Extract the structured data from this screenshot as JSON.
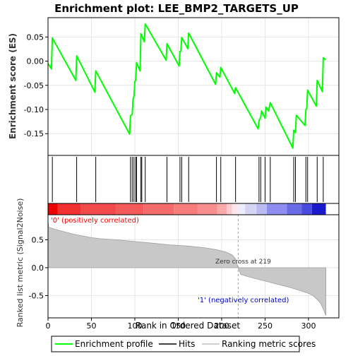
{
  "chart_data": [
    {
      "type": "line",
      "title": "Enrichment plot: LEE_BMP2_TARGETS_UP",
      "ylabel": "Enrichment score (ES)",
      "xlim": [
        0,
        335
      ],
      "ylim": [
        -0.195,
        0.09
      ],
      "yticks": [
        0.05,
        0.0,
        -0.05,
        -0.1,
        -0.15
      ],
      "ytick_labels": [
        "0.05",
        "0.00",
        "-0.05",
        "-0.10",
        "-0.15"
      ],
      "grid": true,
      "series": [
        {
          "name": "Enrichment profile",
          "color": "#00ff00",
          "points": [
            [
              0,
              -0.005
            ],
            [
              4,
              -0.016
            ],
            [
              5,
              0.048
            ],
            [
              32,
              -0.04
            ],
            [
              33,
              0.011
            ],
            [
              54,
              -0.064
            ],
            [
              55,
              -0.02
            ],
            [
              94,
              -0.151
            ],
            [
              95,
              -0.113
            ],
            [
              97,
              -0.11
            ],
            [
              98,
              -0.078
            ],
            [
              99,
              -0.073
            ],
            [
              100,
              -0.042
            ],
            [
              101,
              -0.04
            ],
            [
              102,
              -0.003
            ],
            [
              106,
              -0.02
            ],
            [
              107,
              0.057
            ],
            [
              111,
              0.04
            ],
            [
              112,
              0.077
            ],
            [
              136,
              0.002
            ],
            [
              137,
              0.036
            ],
            [
              151,
              -0.01
            ],
            [
              152,
              0.02
            ],
            [
              153,
              0.021
            ],
            [
              154,
              0.049
            ],
            [
              161,
              0.026
            ],
            [
              162,
              0.058
            ],
            [
              193,
              -0.048
            ],
            [
              194,
              -0.024
            ],
            [
              198,
              -0.033
            ],
            [
              199,
              -0.013
            ],
            [
              215,
              -0.067
            ],
            [
              216,
              -0.055
            ],
            [
              242,
              -0.14
            ],
            [
              243,
              -0.123
            ],
            [
              245,
              -0.116
            ],
            [
              246,
              -0.103
            ],
            [
              250,
              -0.118
            ],
            [
              251,
              -0.095
            ],
            [
              254,
              -0.103
            ],
            [
              256,
              -0.086
            ],
            [
              282,
              -0.18
            ],
            [
              283,
              -0.143
            ],
            [
              285,
              -0.148
            ],
            [
              286,
              -0.112
            ],
            [
              296,
              -0.133
            ],
            [
              297,
              -0.1
            ],
            [
              298,
              -0.098
            ],
            [
              299,
              -0.06
            ],
            [
              309,
              -0.093
            ],
            [
              310,
              -0.04
            ],
            [
              316,
              -0.063
            ],
            [
              317,
              0.007
            ],
            [
              320,
              0.003
            ]
          ]
        }
      ]
    },
    {
      "type": "bar",
      "name": "Hits",
      "hit_positions": [
        5,
        33,
        55,
        95,
        97,
        99,
        101,
        102,
        107,
        108,
        112,
        137,
        152,
        154,
        162,
        194,
        199,
        216,
        243,
        245,
        250,
        256,
        283,
        285,
        297,
        299,
        310,
        317
      ]
    },
    {
      "type": "heatmap",
      "xlim": [
        0,
        335
      ],
      "segments": [
        {
          "x0": 0,
          "x1": 11,
          "color": "#ee0000"
        },
        {
          "x0": 11,
          "x1": 38,
          "color": "#f03030"
        },
        {
          "x0": 38,
          "x1": 78,
          "color": "#f24a4a"
        },
        {
          "x0": 78,
          "x1": 110,
          "color": "#f45a5a"
        },
        {
          "x0": 110,
          "x1": 145,
          "color": "#f56a6a"
        },
        {
          "x0": 145,
          "x1": 172,
          "color": "#f77c7c"
        },
        {
          "x0": 172,
          "x1": 195,
          "color": "#f98e8e"
        },
        {
          "x0": 195,
          "x1": 206,
          "color": "#fbaaaa"
        },
        {
          "x0": 206,
          "x1": 212,
          "color": "#fdcccc"
        },
        {
          "x0": 212,
          "x1": 219,
          "color": "#fde6ee"
        },
        {
          "x0": 219,
          "x1": 227,
          "color": "#ececfa"
        },
        {
          "x0": 227,
          "x1": 240,
          "color": "#d4d4f6"
        },
        {
          "x0": 240,
          "x1": 252,
          "color": "#babaf2"
        },
        {
          "x0": 252,
          "x1": 275,
          "color": "#8e8ef0"
        },
        {
          "x0": 275,
          "x1": 292,
          "color": "#6a6ae4"
        },
        {
          "x0": 292,
          "x1": 304,
          "color": "#4a4ae0"
        },
        {
          "x0": 304,
          "x1": 320,
          "color": "#1a1acc"
        }
      ]
    },
    {
      "type": "area",
      "xlabel": "Rank in Ordered Dataset",
      "ylabel": "Ranked list metric (Signal2Noise)",
      "xlim": [
        0,
        335
      ],
      "ylim": [
        -0.9,
        0.95
      ],
      "xticks": [
        0,
        50,
        100,
        150,
        200,
        250,
        300
      ],
      "yticks": [
        0.5,
        0.0,
        -0.5
      ],
      "ytick_labels": [
        "0.5",
        "0.0",
        "-0.5"
      ],
      "grid": true,
      "series": [
        {
          "name": "Ranking metric scores",
          "points": [
            [
              0,
              0.83
            ],
            [
              1,
              0.72
            ],
            [
              4,
              0.71
            ],
            [
              10,
              0.68
            ],
            [
              20,
              0.64
            ],
            [
              30,
              0.6
            ],
            [
              40,
              0.57
            ],
            [
              50,
              0.54
            ],
            [
              60,
              0.52
            ],
            [
              80,
              0.5
            ],
            [
              100,
              0.47
            ],
            [
              120,
              0.44
            ],
            [
              140,
              0.41
            ],
            [
              160,
              0.39
            ],
            [
              180,
              0.36
            ],
            [
              195,
              0.32
            ],
            [
              205,
              0.28
            ],
            [
              212,
              0.23
            ],
            [
              216,
              0.16
            ],
            [
              219,
              0.0
            ],
            [
              222,
              -0.12
            ],
            [
              230,
              -0.16
            ],
            [
              240,
              -0.2
            ],
            [
              250,
              -0.24
            ],
            [
              260,
              -0.28
            ],
            [
              270,
              -0.32
            ],
            [
              280,
              -0.36
            ],
            [
              290,
              -0.41
            ],
            [
              300,
              -0.46
            ],
            [
              305,
              -0.5
            ],
            [
              310,
              -0.57
            ],
            [
              314,
              -0.64
            ],
            [
              317,
              -0.74
            ],
            [
              320,
              -0.86
            ]
          ]
        }
      ],
      "zero_cross_rank": 219,
      "annotations": {
        "positive": "'0' (positively correlated)",
        "negative": "'1' (negatively correlated)",
        "zero_cross": "Zero cross at 219"
      }
    }
  ],
  "legend": {
    "placement": "bottom",
    "items": [
      {
        "label": "Enrichment profile",
        "color": "#00ff00"
      },
      {
        "label": "Hits",
        "color": "#000000"
      },
      {
        "label": "Ranking metric scores",
        "color": "#c0c0c0"
      }
    ]
  }
}
